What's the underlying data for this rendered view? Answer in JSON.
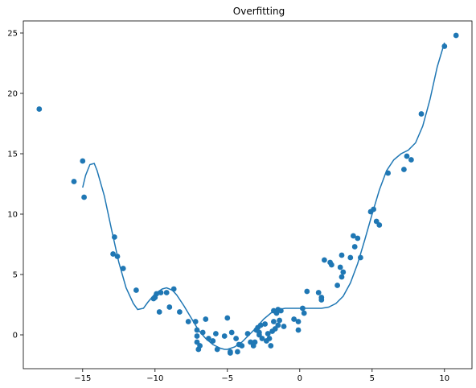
{
  "chart_data": {
    "type": "scatter",
    "title": "Overfitting",
    "xlabel": "",
    "ylabel": "",
    "xlim": [
      -19.1,
      11.9
    ],
    "ylim": [
      -2.8,
      26.0
    ],
    "xticks": [
      -15,
      -10,
      -5,
      0,
      5,
      10
    ],
    "yticks": [
      0,
      5,
      10,
      15,
      20,
      25
    ],
    "xtick_labels": [
      "−15",
      "−10",
      "−5",
      "0",
      "5",
      "10"
    ],
    "ytick_labels": [
      "0",
      "5",
      "10",
      "15",
      "20",
      "25"
    ],
    "grid": false,
    "legend": "none",
    "colors": {
      "series": "#1f77b4"
    },
    "series": [
      {
        "kind": "scatter",
        "points": [
          [
            -18.0,
            18.7
          ],
          [
            -15.6,
            12.7
          ],
          [
            -15.0,
            14.4
          ],
          [
            -14.9,
            11.4
          ],
          [
            -12.9,
            6.7
          ],
          [
            -12.8,
            8.1
          ],
          [
            -12.6,
            6.5
          ],
          [
            -12.2,
            5.5
          ],
          [
            -11.3,
            3.7
          ],
          [
            -10.1,
            3.0
          ],
          [
            -10.0,
            3.1
          ],
          [
            -9.9,
            3.4
          ],
          [
            -9.7,
            1.9
          ],
          [
            -9.6,
            3.5
          ],
          [
            -9.2,
            3.5
          ],
          [
            -9.0,
            2.3
          ],
          [
            -8.7,
            3.8
          ],
          [
            -8.3,
            1.9
          ],
          [
            -7.7,
            1.1
          ],
          [
            -7.2,
            1.1
          ],
          [
            -7.1,
            0.4
          ],
          [
            -7.1,
            -0.1
          ],
          [
            -7.1,
            -0.6
          ],
          [
            -7.0,
            -1.2
          ],
          [
            -6.9,
            -0.9
          ],
          [
            -6.7,
            0.2
          ],
          [
            -6.5,
            1.3
          ],
          [
            -6.3,
            -0.3
          ],
          [
            -6.0,
            -0.5
          ],
          [
            -5.8,
            0.1
          ],
          [
            -5.7,
            -1.2
          ],
          [
            -5.2,
            -0.1
          ],
          [
            -5.0,
            1.4
          ],
          [
            -4.8,
            -1.4
          ],
          [
            -4.8,
            -1.5
          ],
          [
            -4.7,
            0.2
          ],
          [
            -4.4,
            -0.3
          ],
          [
            -4.3,
            -1.4
          ],
          [
            -4.2,
            -0.8
          ],
          [
            -4.0,
            -0.9
          ],
          [
            -3.6,
            0.1
          ],
          [
            -3.4,
            -0.6
          ],
          [
            -3.2,
            -0.9
          ],
          [
            -3.1,
            -0.6
          ],
          [
            -3.0,
            0.4
          ],
          [
            -2.9,
            0.6
          ],
          [
            -2.8,
            0.0
          ],
          [
            -2.8,
            0.2
          ],
          [
            -2.7,
            0.8
          ],
          [
            -2.6,
            -0.3
          ],
          [
            -2.4,
            0.9
          ],
          [
            -2.3,
            -0.5
          ],
          [
            -2.2,
            0.1
          ],
          [
            -2.1,
            -0.3
          ],
          [
            -2.0,
            -0.9
          ],
          [
            -1.9,
            0.3
          ],
          [
            -1.8,
            1.1
          ],
          [
            -1.8,
            2.0
          ],
          [
            -1.7,
            0.5
          ],
          [
            -1.6,
            1.8
          ],
          [
            -1.5,
            2.1
          ],
          [
            -1.5,
            0.8
          ],
          [
            -1.4,
            1.2
          ],
          [
            -1.3,
            2.0
          ],
          [
            -1.1,
            0.7
          ],
          [
            -0.4,
            1.3
          ],
          [
            -0.1,
            0.4
          ],
          [
            -0.1,
            1.1
          ],
          [
            0.2,
            2.2
          ],
          [
            0.3,
            1.8
          ],
          [
            0.5,
            3.6
          ],
          [
            1.3,
            3.5
          ],
          [
            1.5,
            3.1
          ],
          [
            1.5,
            2.9
          ],
          [
            1.7,
            6.2
          ],
          [
            2.1,
            6.0
          ],
          [
            2.2,
            5.8
          ],
          [
            2.6,
            4.1
          ],
          [
            2.8,
            5.6
          ],
          [
            2.9,
            4.8
          ],
          [
            2.9,
            6.6
          ],
          [
            3.0,
            5.2
          ],
          [
            3.5,
            6.4
          ],
          [
            3.7,
            8.2
          ],
          [
            3.8,
            7.3
          ],
          [
            4.0,
            8.0
          ],
          [
            4.2,
            6.4
          ],
          [
            4.9,
            10.2
          ],
          [
            5.1,
            10.4
          ],
          [
            5.3,
            9.4
          ],
          [
            5.5,
            9.1
          ],
          [
            6.1,
            13.4
          ],
          [
            7.2,
            13.7
          ],
          [
            7.4,
            14.8
          ],
          [
            7.7,
            14.5
          ],
          [
            8.4,
            18.3
          ],
          [
            10.0,
            23.9
          ],
          [
            10.8,
            24.8
          ]
        ]
      },
      {
        "kind": "line",
        "points": [
          [
            -15.0,
            12.2
          ],
          [
            -14.8,
            13.2
          ],
          [
            -14.5,
            14.1
          ],
          [
            -14.2,
            14.2
          ],
          [
            -14.0,
            13.6
          ],
          [
            -13.5,
            11.5
          ],
          [
            -13.0,
            8.7
          ],
          [
            -12.5,
            6.0
          ],
          [
            -12.0,
            3.9
          ],
          [
            -11.5,
            2.6
          ],
          [
            -11.2,
            2.1
          ],
          [
            -10.8,
            2.2
          ],
          [
            -10.5,
            2.7
          ],
          [
            -10.0,
            3.4
          ],
          [
            -9.5,
            3.8
          ],
          [
            -9.2,
            3.9
          ],
          [
            -8.8,
            3.7
          ],
          [
            -8.5,
            3.3
          ],
          [
            -8.0,
            2.4
          ],
          [
            -7.5,
            1.4
          ],
          [
            -7.0,
            0.4
          ],
          [
            -6.5,
            -0.3
          ],
          [
            -6.0,
            -0.8
          ],
          [
            -5.5,
            -1.1
          ],
          [
            -5.2,
            -1.2
          ],
          [
            -5.0,
            -1.2
          ],
          [
            -4.5,
            -1.0
          ],
          [
            -4.0,
            -0.6
          ],
          [
            -3.5,
            0.0
          ],
          [
            -3.0,
            0.6
          ],
          [
            -2.5,
            1.3
          ],
          [
            -2.0,
            1.8
          ],
          [
            -1.5,
            2.1
          ],
          [
            -1.0,
            2.2
          ],
          [
            0.0,
            2.2
          ],
          [
            1.0,
            2.2
          ],
          [
            1.5,
            2.2
          ],
          [
            2.0,
            2.3
          ],
          [
            2.5,
            2.6
          ],
          [
            3.0,
            3.2
          ],
          [
            3.5,
            4.3
          ],
          [
            4.0,
            5.9
          ],
          [
            4.5,
            7.9
          ],
          [
            5.0,
            10.0
          ],
          [
            5.5,
            12.0
          ],
          [
            6.0,
            13.6
          ],
          [
            6.5,
            14.5
          ],
          [
            7.0,
            15.0
          ],
          [
            7.5,
            15.3
          ],
          [
            8.0,
            15.9
          ],
          [
            8.5,
            17.3
          ],
          [
            9.0,
            19.5
          ],
          [
            9.5,
            22.2
          ],
          [
            10.0,
            24.2
          ]
        ]
      }
    ]
  }
}
